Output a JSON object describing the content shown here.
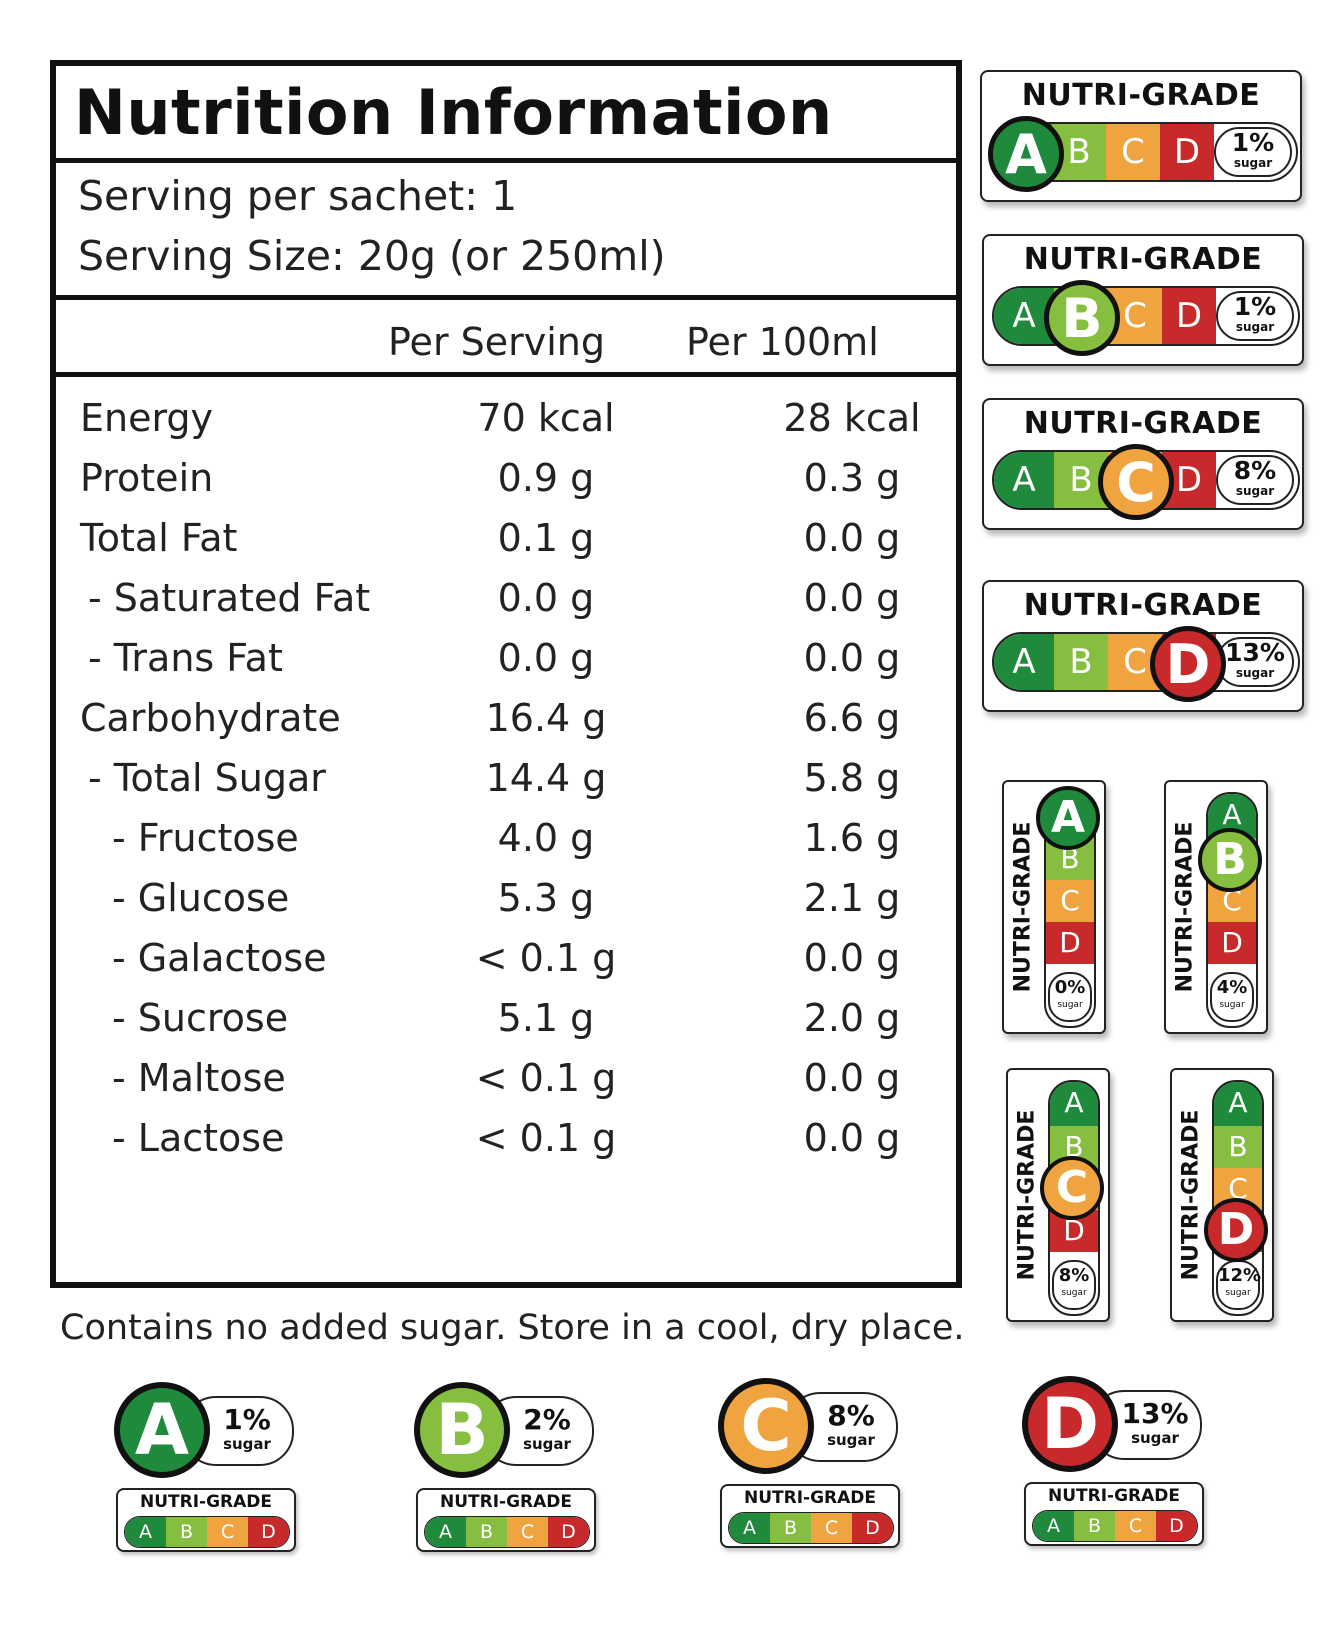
{
  "panel": {
    "title": "Nutrition Information",
    "serving_per": "Serving per sachet: 1",
    "serving_size": "Serving Size: 20g (or 250ml)",
    "col_per_serving": "Per Serving",
    "col_per_100": "Per 100ml",
    "rows": [
      {
        "label": "Energy",
        "per_serving": "70 kcal",
        "per_100": "28 kcal"
      },
      {
        "label": "Protein",
        "per_serving": "0.9 g",
        "per_100": "0.3 g"
      },
      {
        "label": "Total Fat",
        "per_serving": "0.1 g",
        "per_100": "0.0 g"
      },
      {
        "label": " - Saturated Fat",
        "per_serving": "0.0 g",
        "per_100": "0.0 g"
      },
      {
        "label": " - Trans Fat",
        "per_serving": "0.0 g",
        "per_100": "0.0 g"
      },
      {
        "label": "Carbohydrate",
        "per_serving": "16.4 g",
        "per_100": "6.6 g"
      },
      {
        "label": " - Total Sugar",
        "per_serving": "14.4 g",
        "per_100": "5.8 g"
      },
      {
        "label": "   - Fructose",
        "per_serving": "4.0 g",
        "per_100": "1.6 g"
      },
      {
        "label": "   - Glucose",
        "per_serving": "5.3 g",
        "per_100": "2.1 g"
      },
      {
        "label": "   - Galactose",
        "per_serving": "< 0.1 g",
        "per_100": "0.0 g"
      },
      {
        "label": "   - Sucrose",
        "per_serving": "5.1 g",
        "per_100": "2.0 g"
      },
      {
        "label": "   - Maltose",
        "per_serving": "< 0.1 g",
        "per_100": "0.0 g"
      },
      {
        "label": "   - Lactose",
        "per_serving": "< 0.1 g",
        "per_100": "0.0 g"
      }
    ]
  },
  "note": "Contains no added sugar. Store in a cool, dry place.",
  "grade_title": "NUTRI-GRADE",
  "grade_letters": [
    "A",
    "B",
    "C",
    "D"
  ],
  "sugar_word": "sugar",
  "colors": {
    "A": "#1f8a3c",
    "B": "#86bf3f",
    "C": "#f0a440",
    "D": "#c8292a"
  },
  "horizontal_badges": [
    {
      "grade": "A",
      "sugar": "1%"
    },
    {
      "grade": "B",
      "sugar": "1%"
    },
    {
      "grade": "C",
      "sugar": "8%"
    },
    {
      "grade": "D",
      "sugar": "13%"
    }
  ],
  "vertical_badges": [
    {
      "grade": "A",
      "sugar": "0%"
    },
    {
      "grade": "B",
      "sugar": "4%"
    },
    {
      "grade": "C",
      "sugar": "8%"
    },
    {
      "grade": "D",
      "sugar": "12%"
    }
  ],
  "stacked_badges": [
    {
      "grade": "A",
      "sugar": "1%"
    },
    {
      "grade": "B",
      "sugar": "2%"
    },
    {
      "grade": "C",
      "sugar": "8%"
    },
    {
      "grade": "D",
      "sugar": "13%"
    }
  ]
}
